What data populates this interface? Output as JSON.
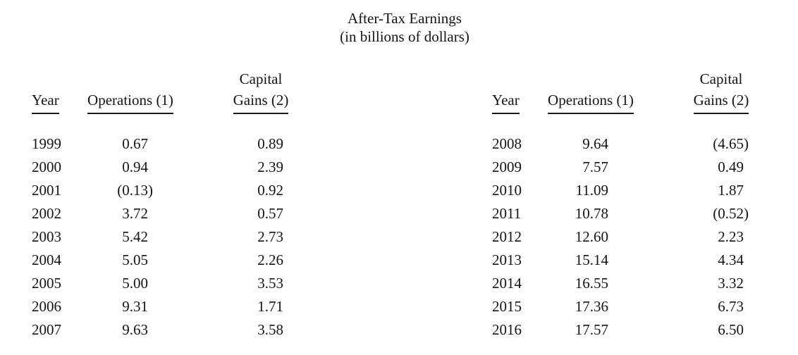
{
  "colors": {
    "background": "#ffffff",
    "text": "#141414"
  },
  "title": {
    "line1": "After-Tax Earnings",
    "line2": "(in billions of dollars)"
  },
  "header": {
    "year": "Year",
    "operations": "Operations (1)",
    "capital": "Capital",
    "gains": "Gains (2)"
  },
  "left_table": {
    "rows": [
      {
        "year": "1999",
        "operations": "0.67",
        "capital_gains": "0.89"
      },
      {
        "year": "2000",
        "operations": "0.94",
        "capital_gains": "2.39"
      },
      {
        "year": "2001",
        "operations": "(0.13)",
        "capital_gains": "0.92"
      },
      {
        "year": "2002",
        "operations": "3.72",
        "capital_gains": "0.57"
      },
      {
        "year": "2003",
        "operations": "5.42",
        "capital_gains": "2.73"
      },
      {
        "year": "2004",
        "operations": "5.05",
        "capital_gains": "2.26"
      },
      {
        "year": "2005",
        "operations": "5.00",
        "capital_gains": "3.53"
      },
      {
        "year": "2006",
        "operations": "9.31",
        "capital_gains": "1.71"
      },
      {
        "year": "2007",
        "operations": "9.63",
        "capital_gains": "3.58"
      }
    ]
  },
  "right_table": {
    "rows": [
      {
        "year": "2008",
        "operations": "9.64",
        "capital_gains": "(4.65)"
      },
      {
        "year": "2009",
        "operations": "7.57",
        "capital_gains": "0.49"
      },
      {
        "year": "2010",
        "operations": "11.09",
        "capital_gains": "1.87"
      },
      {
        "year": "2011",
        "operations": "10.78",
        "capital_gains": "(0.52)"
      },
      {
        "year": "2012",
        "operations": "12.60",
        "capital_gains": "2.23"
      },
      {
        "year": "2013",
        "operations": "15.14",
        "capital_gains": "4.34"
      },
      {
        "year": "2014",
        "operations": "16.55",
        "capital_gains": "3.32"
      },
      {
        "year": "2015",
        "operations": "17.36",
        "capital_gains": "6.73"
      },
      {
        "year": "2016",
        "operations": "17.57",
        "capital_gains": "6.50"
      }
    ]
  }
}
